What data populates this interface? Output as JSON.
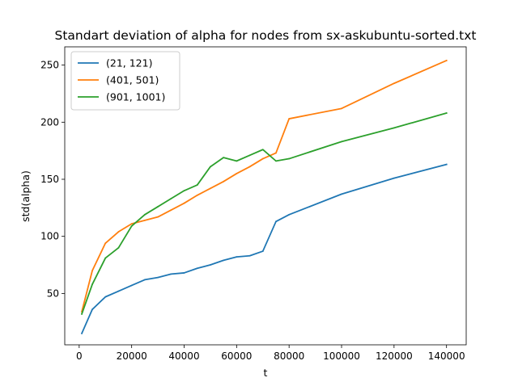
{
  "chart_data": {
    "type": "line",
    "title": "Standart deviation of alpha for nodes from sx-askubuntu-sorted.txt",
    "xlabel": "t",
    "ylabel": "std(alpha)",
    "xlim": [
      -5500,
      147500
    ],
    "ylim": [
      5,
      266
    ],
    "xticks": [
      0,
      20000,
      40000,
      60000,
      80000,
      100000,
      120000,
      140000
    ],
    "yticks": [
      50,
      100,
      150,
      200,
      250
    ],
    "grid": false,
    "legend_position": "upper left",
    "series": [
      {
        "name": "(21, 121)",
        "color": "#1f77b4",
        "x": [
          1000,
          5000,
          10000,
          15000,
          20000,
          25000,
          30000,
          35000,
          40000,
          45000,
          50000,
          55000,
          60000,
          65000,
          70000,
          75000,
          80000,
          100000,
          120000,
          140000
        ],
        "y": [
          15,
          36,
          47,
          52,
          57,
          62,
          64,
          67,
          68,
          72,
          75,
          79,
          82,
          83,
          87,
          113,
          119,
          137,
          151,
          163
        ]
      },
      {
        "name": "(401, 501)",
        "color": "#ff7f0e",
        "x": [
          1000,
          5000,
          10000,
          15000,
          20000,
          25000,
          30000,
          35000,
          40000,
          45000,
          50000,
          55000,
          60000,
          65000,
          70000,
          75000,
          80000,
          100000,
          120000,
          140000
        ],
        "y": [
          34,
          70,
          94,
          104,
          111,
          114,
          117,
          123,
          129,
          136,
          142,
          148,
          155,
          161,
          168,
          173,
          203,
          212,
          234,
          254
        ]
      },
      {
        "name": "(901, 1001)",
        "color": "#2ca02c",
        "x": [
          1000,
          5000,
          10000,
          15000,
          20000,
          25000,
          30000,
          35000,
          40000,
          45000,
          50000,
          55000,
          60000,
          65000,
          70000,
          75000,
          80000,
          100000,
          120000,
          140000
        ],
        "y": [
          32,
          58,
          81,
          90,
          109,
          119,
          126,
          133,
          140,
          145,
          161,
          169,
          166,
          171,
          176,
          166,
          168,
          183,
          195,
          208
        ]
      }
    ]
  }
}
